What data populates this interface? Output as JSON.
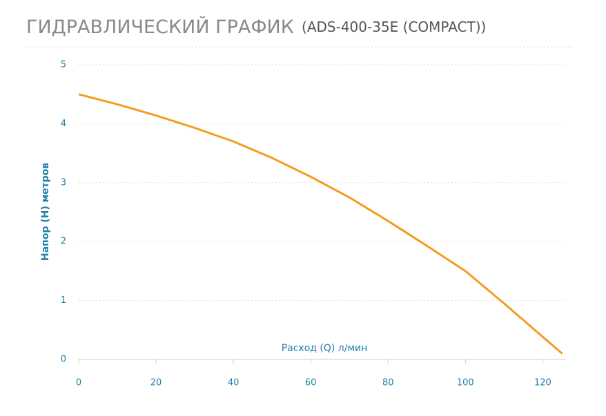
{
  "chart_data": {
    "type": "line",
    "title": "ГИДРАВЛИЧЕСКИЙ ГРАФИК",
    "subtitle": "(ADS-400-35E (COMPACT))",
    "x_label": "Расход (Q) л/мин",
    "y_label": "Напор (Н) метров",
    "x": [
      0,
      10,
      20,
      30,
      40,
      50,
      60,
      70,
      80,
      90,
      100,
      110,
      125
    ],
    "series": [
      {
        "name": "ADS-400-35E (COMPACT)",
        "color": "#f39c1f",
        "values": [
          4.5,
          4.33,
          4.14,
          3.93,
          3.7,
          3.42,
          3.1,
          2.75,
          2.35,
          1.93,
          1.5,
          0.95,
          0.1
        ]
      }
    ],
    "xlim": [
      0,
      126
    ],
    "ylim": [
      0,
      5
    ],
    "xticks": [
      0,
      20,
      40,
      60,
      80,
      100,
      120
    ],
    "yticks": [
      0,
      1,
      2,
      3,
      4,
      5
    ],
    "grid": true
  }
}
